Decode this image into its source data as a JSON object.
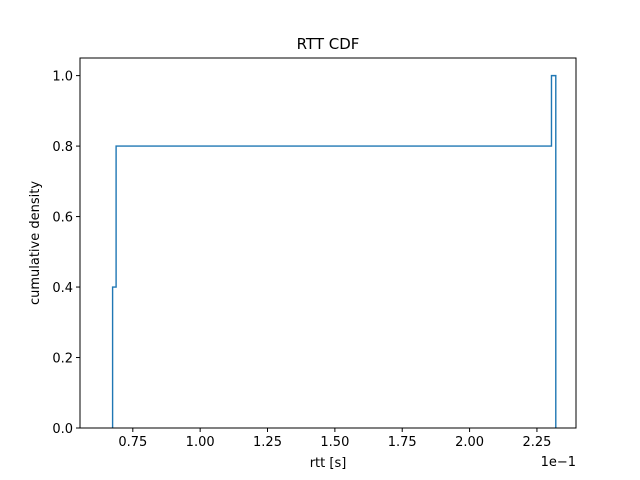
{
  "chart_data": {
    "type": "line",
    "title": "RTT CDF",
    "xlabel": "rtt [s]",
    "ylabel": "cumulative density",
    "x_scale_text": "1e−1",
    "xlim": [
      0.0554,
      0.2395
    ],
    "ylim": [
      0,
      1.05
    ],
    "xticks": [
      {
        "value": 0.075,
        "label": "0.75"
      },
      {
        "value": 0.1,
        "label": "1.00"
      },
      {
        "value": 0.125,
        "label": "1.25"
      },
      {
        "value": 0.15,
        "label": "1.50"
      },
      {
        "value": 0.175,
        "label": "1.75"
      },
      {
        "value": 0.2,
        "label": "2.00"
      },
      {
        "value": 0.225,
        "label": "2.25"
      }
    ],
    "yticks": [
      {
        "value": 0.0,
        "label": "0.0"
      },
      {
        "value": 0.2,
        "label": "0.2"
      },
      {
        "value": 0.4,
        "label": "0.4"
      },
      {
        "value": 0.6,
        "label": "0.6"
      },
      {
        "value": 0.8,
        "label": "0.8"
      },
      {
        "value": 1.0,
        "label": "1.0"
      }
    ],
    "grid": false,
    "series": [
      {
        "style": "step-histogram",
        "color": "#1f77b4",
        "x": [
          0.0675,
          0.0675,
          0.0688,
          0.0688,
          0.2304,
          0.2304,
          0.232,
          0.232
        ],
        "y": [
          0.0,
          0.4,
          0.4,
          0.8,
          0.8,
          1.0,
          1.0,
          0.0
        ]
      }
    ]
  }
}
